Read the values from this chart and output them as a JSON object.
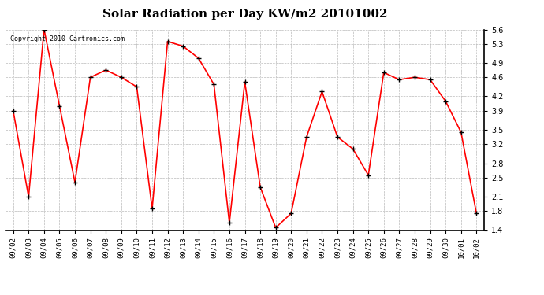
{
  "title": "Solar Radiation per Day KW/m2 20101002",
  "copyright": "Copyright 2010 Cartronics.com",
  "line_color": "#ff0000",
  "marker_color": "#000000",
  "background_color": "#ffffff",
  "grid_color": "#bbbbbb",
  "ylim": [
    1.4,
    5.6
  ],
  "yticks": [
    1.4,
    1.8,
    2.1,
    2.5,
    2.8,
    3.2,
    3.5,
    3.9,
    4.2,
    4.6,
    4.9,
    5.3,
    5.6
  ],
  "dates": [
    "09/02",
    "09/03",
    "09/04",
    "09/05",
    "09/06",
    "09/07",
    "09/08",
    "09/09",
    "09/10",
    "09/11",
    "09/12",
    "09/13",
    "09/14",
    "09/15",
    "09/16",
    "09/17",
    "09/18",
    "09/19",
    "09/20",
    "09/21",
    "09/22",
    "09/23",
    "09/24",
    "09/25",
    "09/26",
    "09/27",
    "09/28",
    "09/29",
    "09/30",
    "10/01",
    "10/02"
  ],
  "values": [
    3.9,
    2.1,
    5.6,
    4.0,
    2.4,
    4.6,
    4.75,
    4.6,
    4.4,
    1.85,
    5.35,
    5.25,
    5.0,
    4.45,
    1.55,
    4.5,
    2.3,
    1.45,
    1.75,
    3.35,
    4.3,
    3.35,
    3.1,
    2.55,
    4.7,
    4.55,
    4.6,
    4.55,
    4.1,
    3.45,
    1.75
  ],
  "title_fontsize": 11,
  "copyright_fontsize": 6,
  "tick_fontsize": 6.5,
  "ytick_fontsize": 7
}
